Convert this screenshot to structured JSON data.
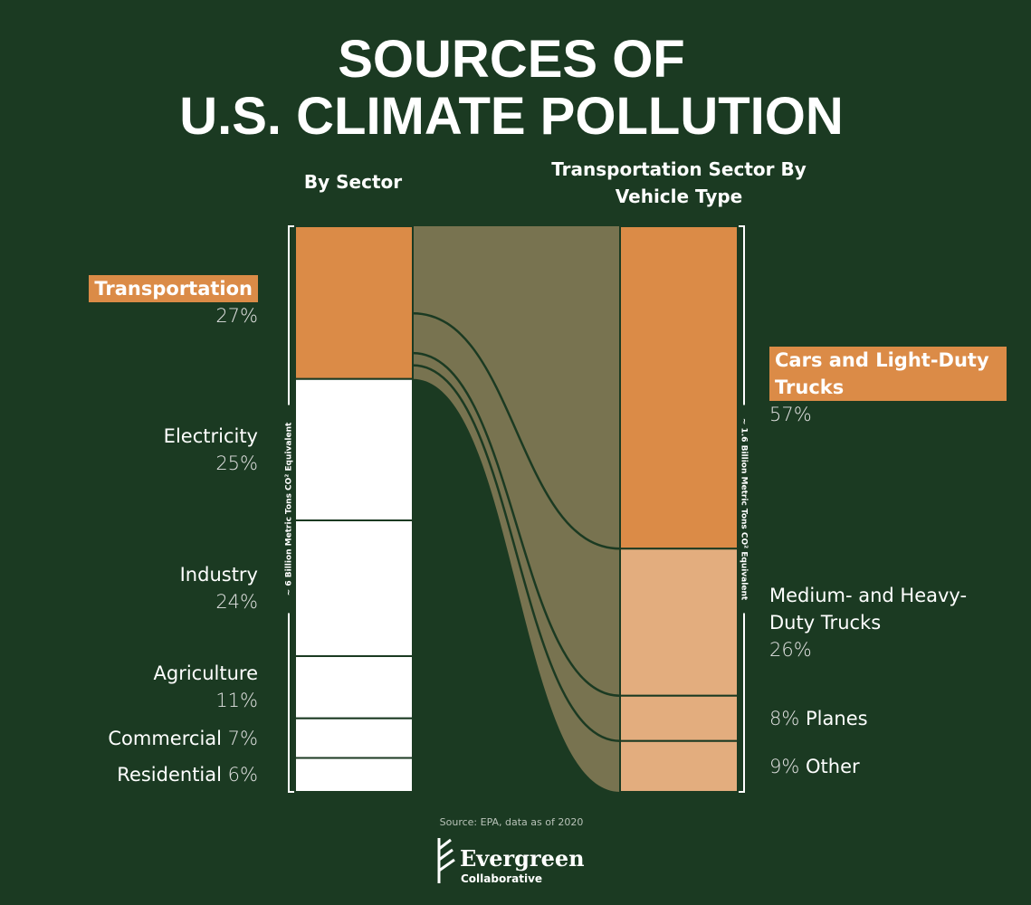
{
  "title": [
    "SOURCES OF",
    "U.S. CLIMATE POLLUTION"
  ],
  "chart_data": [
    {
      "type": "stacked_bar",
      "subtitle": "By Sector",
      "categories": [
        "Transportation",
        "Electricity",
        "Industry",
        "Agriculture",
        "Commercial",
        "Residential"
      ],
      "values": [
        27,
        25,
        24,
        11,
        7,
        6
      ],
      "value_labels": [
        "27%",
        "25%",
        "24%",
        "11%",
        "7%",
        "6%"
      ],
      "colors": [
        "#db8b47",
        "#ffffff",
        "#ffffff",
        "#ffffff",
        "#ffffff",
        "#ffffff"
      ],
      "highlight_index": 0,
      "axis_label": "~ 6 Billion Metric Tons CO² Equivalent"
    },
    {
      "type": "stacked_bar",
      "subtitle": "Transportation Sector By Vehicle Type",
      "categories": [
        "Cars and Light-Duty Trucks",
        "Medium- and Heavy-Duty Trucks",
        "Planes",
        "Other"
      ],
      "values": [
        57,
        26,
        8,
        9
      ],
      "value_labels": [
        "57%",
        "26%",
        "8%",
        "9%"
      ],
      "colors": [
        "#db8b47",
        "#e3ad7e",
        "#e3ad7e",
        "#e3ad7e"
      ],
      "highlight_index": 0,
      "axis_label": "~ 1.6 Billion Metric Tons CO² Equivalent"
    }
  ],
  "source": "Source: EPA, data as of 2020",
  "logo": {
    "name": "Evergreen",
    "subname": "Collaborative"
  }
}
